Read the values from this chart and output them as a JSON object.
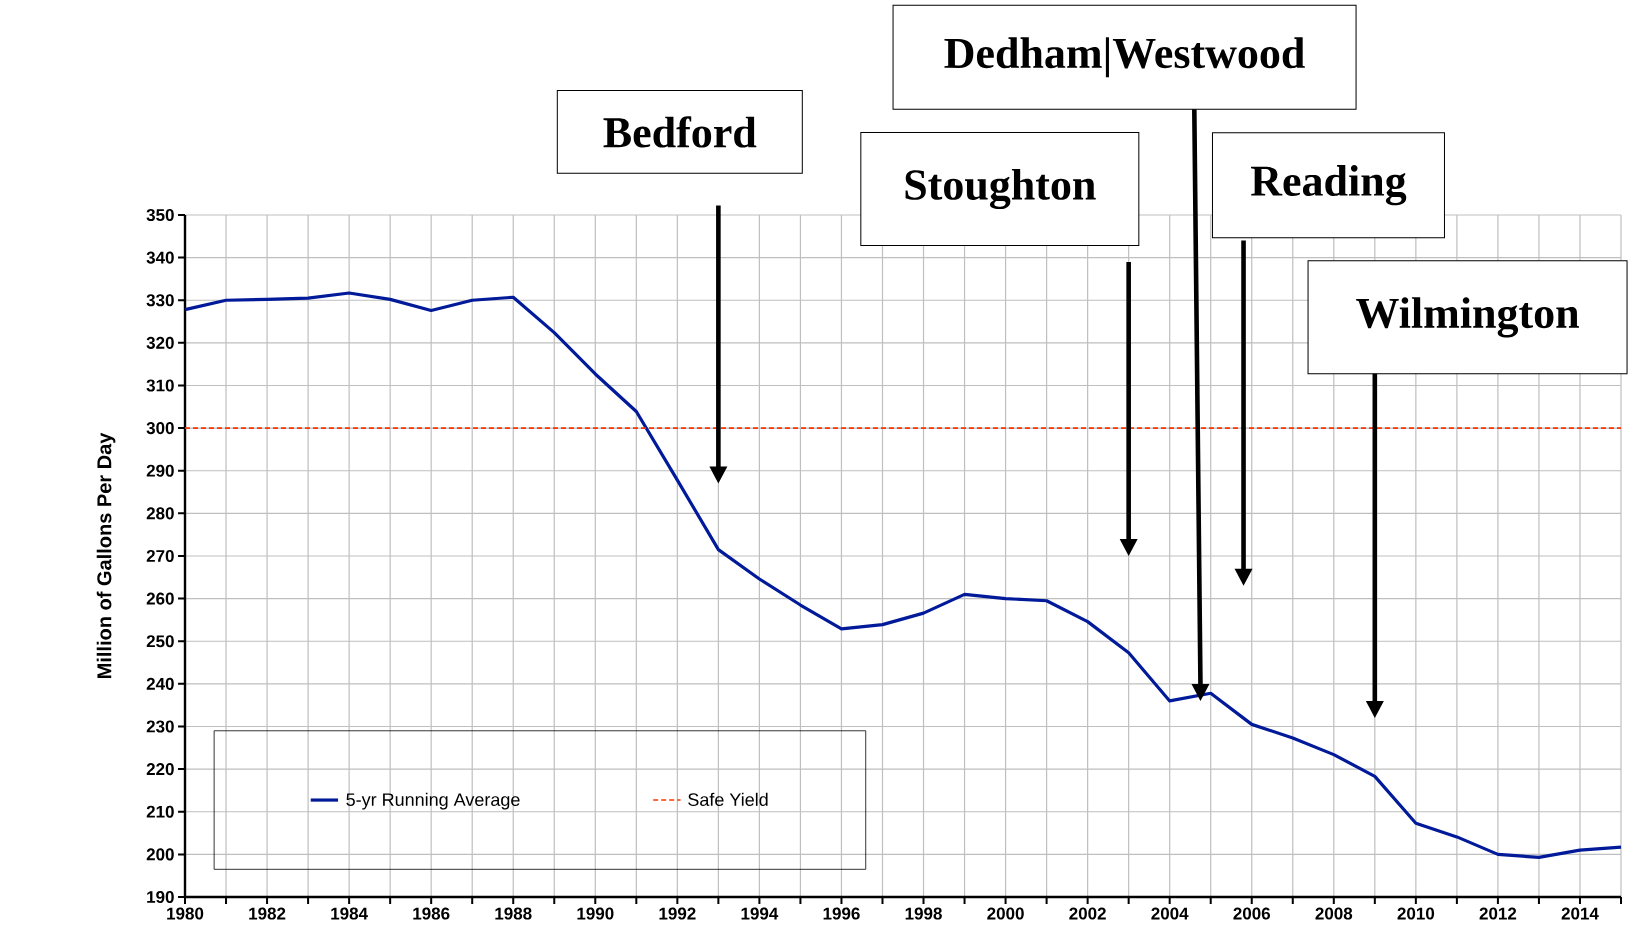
{
  "chart_data": {
    "type": "line",
    "ylabel": "Million of Gallons Per Day",
    "x": [
      1980,
      1981,
      1982,
      1983,
      1984,
      1985,
      1986,
      1987,
      1988,
      1989,
      1990,
      1991,
      1992,
      1993,
      1994,
      1995,
      1996,
      1997,
      1998,
      1999,
      2000,
      2001,
      2002,
      2003,
      2004,
      2005,
      2006,
      2007,
      2008,
      2009,
      2010,
      2011,
      2012,
      2013,
      2014,
      2015
    ],
    "series": [
      {
        "name": "5-yr Running Average",
        "color": "#001a99",
        "values": [
          327.8,
          330,
          330.2,
          330.5,
          331.7,
          330.2,
          327.6,
          330,
          330.7,
          322.4,
          312.7,
          303.9,
          287.8,
          271.5,
          264.6,
          258.5,
          252.9,
          253.9,
          256.6,
          261,
          260,
          259.5,
          254.6,
          247.3,
          236,
          237.8,
          230.5,
          227.3,
          223.4,
          218.3,
          207.3,
          204.1,
          200,
          199.3,
          201,
          201.7
        ]
      }
    ],
    "ref_lines": [
      {
        "axis": "y",
        "value": 300,
        "label": "Safe Yield",
        "color": "#ff3300",
        "line_style": "dashed"
      }
    ],
    "annotations": [
      "Bedford",
      "Stoughton",
      "Dedham|Westwood",
      "Reading",
      "Wilmington"
    ],
    "xlim": [
      1980,
      2015
    ],
    "xticks": [
      1980,
      {
        "value": 1981,
        "label": null
      },
      1982,
      {
        "value": 1983,
        "label": null
      },
      1984,
      {
        "value": 1985,
        "label": null
      },
      1986,
      {
        "value": 1987,
        "label": null
      },
      1988,
      {
        "value": 1989,
        "label": null
      },
      1990,
      {
        "value": 1991,
        "label": null
      },
      1992,
      {
        "value": 1993,
        "label": null
      },
      1994,
      {
        "value": 1995,
        "label": null
      },
      1996,
      {
        "value": 1997,
        "label": null
      },
      1998,
      {
        "value": 1999,
        "label": null
      },
      2000,
      {
        "value": 2001,
        "label": null
      },
      2002,
      {
        "value": 2003,
        "label": null
      },
      2004,
      {
        "value": 2005,
        "label": null
      },
      2006,
      {
        "value": 2007,
        "label": null
      },
      2008,
      {
        "value": 2009,
        "label": null
      },
      2010,
      {
        "value": 2011,
        "label": null
      },
      2012,
      {
        "value": 2013,
        "label": null
      },
      2014,
      {
        "value": 2015,
        "label": null
      }
    ],
    "ylim": [
      190,
      350
    ],
    "yticks": [
      190,
      200,
      210,
      220,
      230,
      240,
      250,
      260,
      270,
      280,
      290,
      300,
      310,
      320,
      330,
      340,
      350
    ],
    "grid": true,
    "legend": "bottom left",
    "marker": "none",
    "line_style": "solid"
  }
}
